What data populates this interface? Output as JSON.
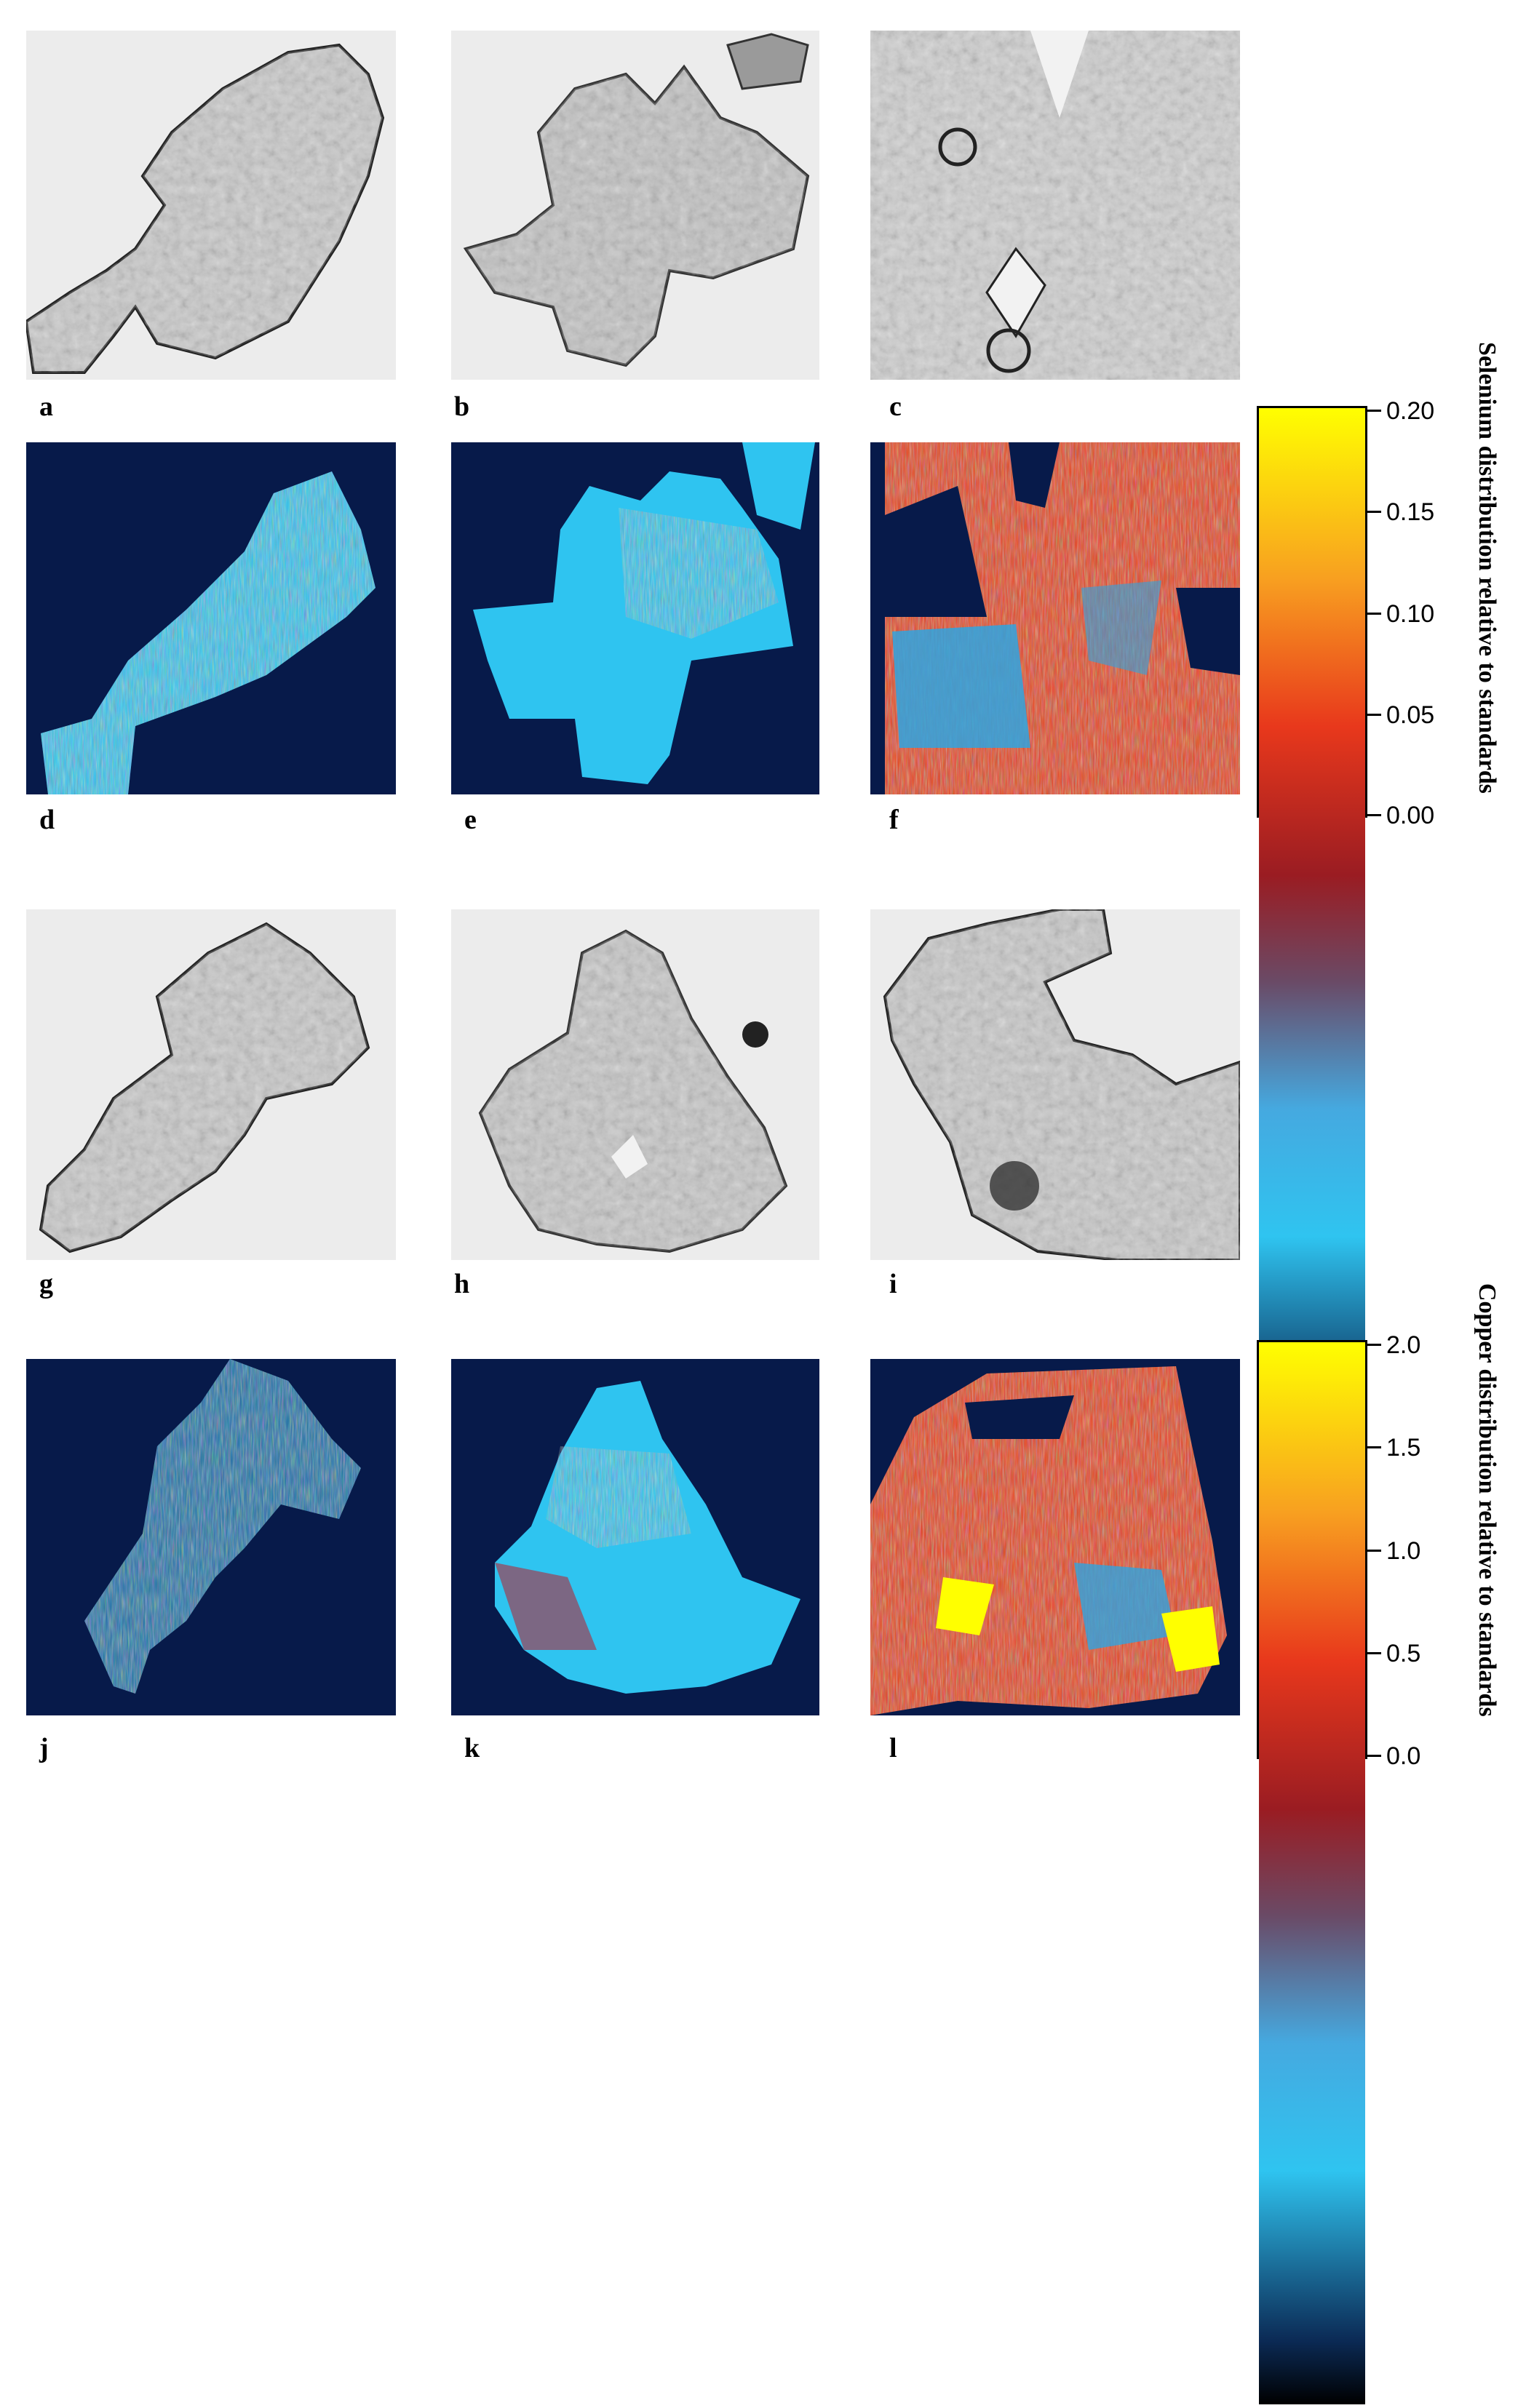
{
  "panels": {
    "a": "a",
    "b": "b",
    "c": "c",
    "d": "d",
    "e": "e",
    "f": "f",
    "g": "g",
    "h": "h",
    "i": "i",
    "j": "j",
    "k": "k",
    "l": "l"
  },
  "colorbars": {
    "selenium": {
      "title": "Selenium distribution relative to standards",
      "ticks": [
        "0.20",
        "0.15",
        "0.10",
        "0.05",
        "0.00"
      ]
    },
    "copper": {
      "title": "Copper distribution relative to standards",
      "ticks": [
        "2.0",
        "1.5",
        "1.0",
        "0.5",
        "0.0"
      ]
    }
  },
  "colors": {
    "background_map": "#071a4a",
    "low": "#2fc4f0",
    "mid": "#c0202a",
    "high": "#ffff00"
  }
}
